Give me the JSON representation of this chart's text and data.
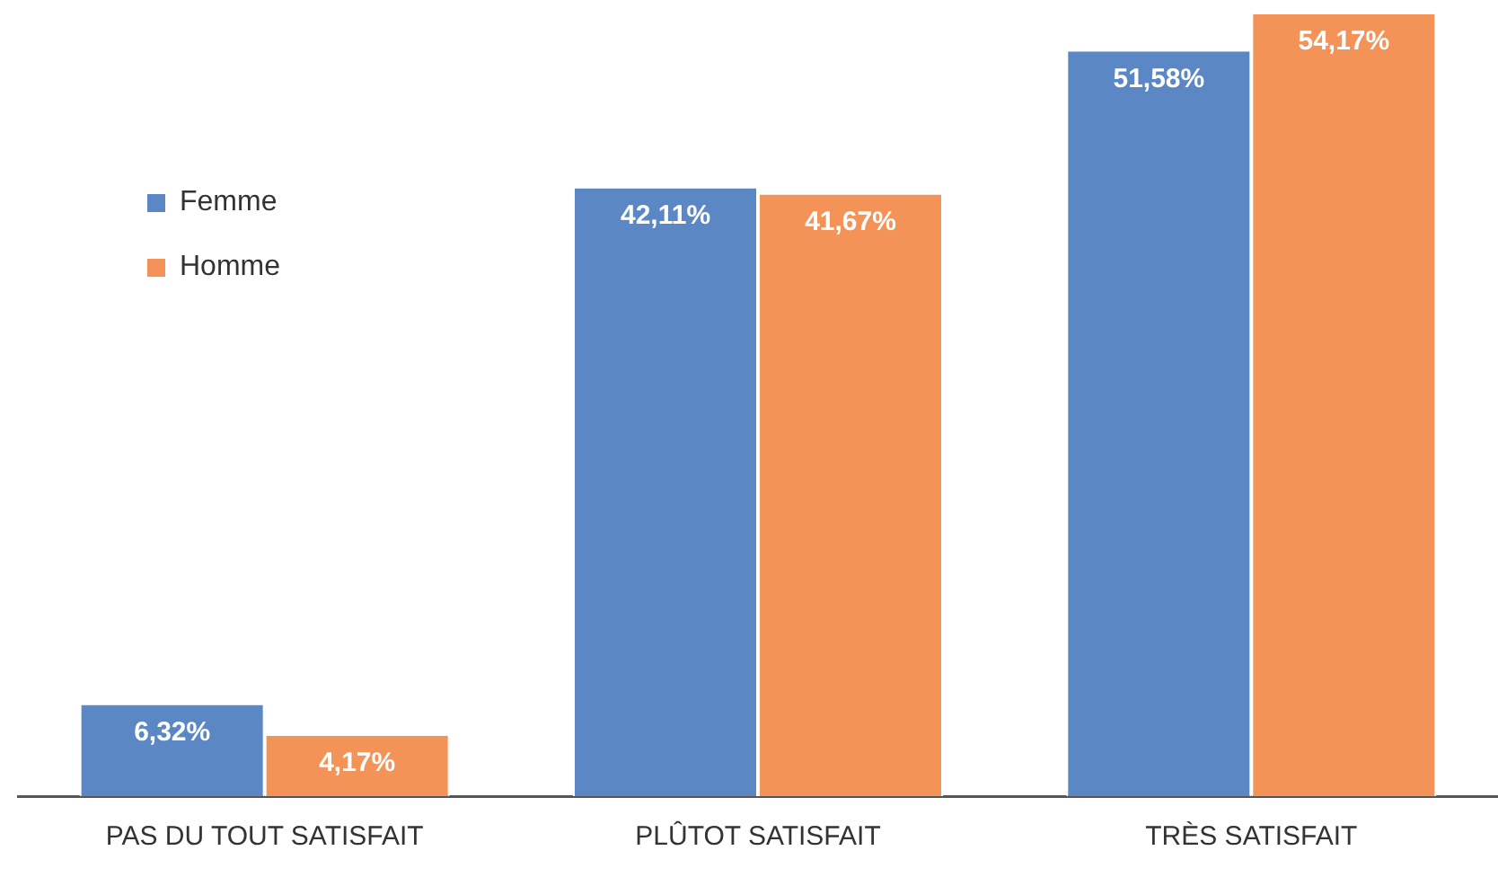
{
  "chart_data": {
    "type": "bar",
    "categories": [
      "PAS DU TOUT SATISFAIT",
      "PLÛTOT SATISFAIT",
      "TRÈS SATISFAIT"
    ],
    "series": [
      {
        "name": "Femme",
        "color": "#5b87c5",
        "values": [
          6.32,
          42.11,
          51.58
        ],
        "value_labels": [
          "6,32%",
          "42,11%",
          "51,58%"
        ]
      },
      {
        "name": "Homme",
        "color": "#f39358",
        "values": [
          4.17,
          41.67,
          54.17
        ],
        "value_labels": [
          "4,17%",
          "41,67%",
          "54,17%"
        ]
      }
    ],
    "legend": "top left",
    "grid": false
  }
}
